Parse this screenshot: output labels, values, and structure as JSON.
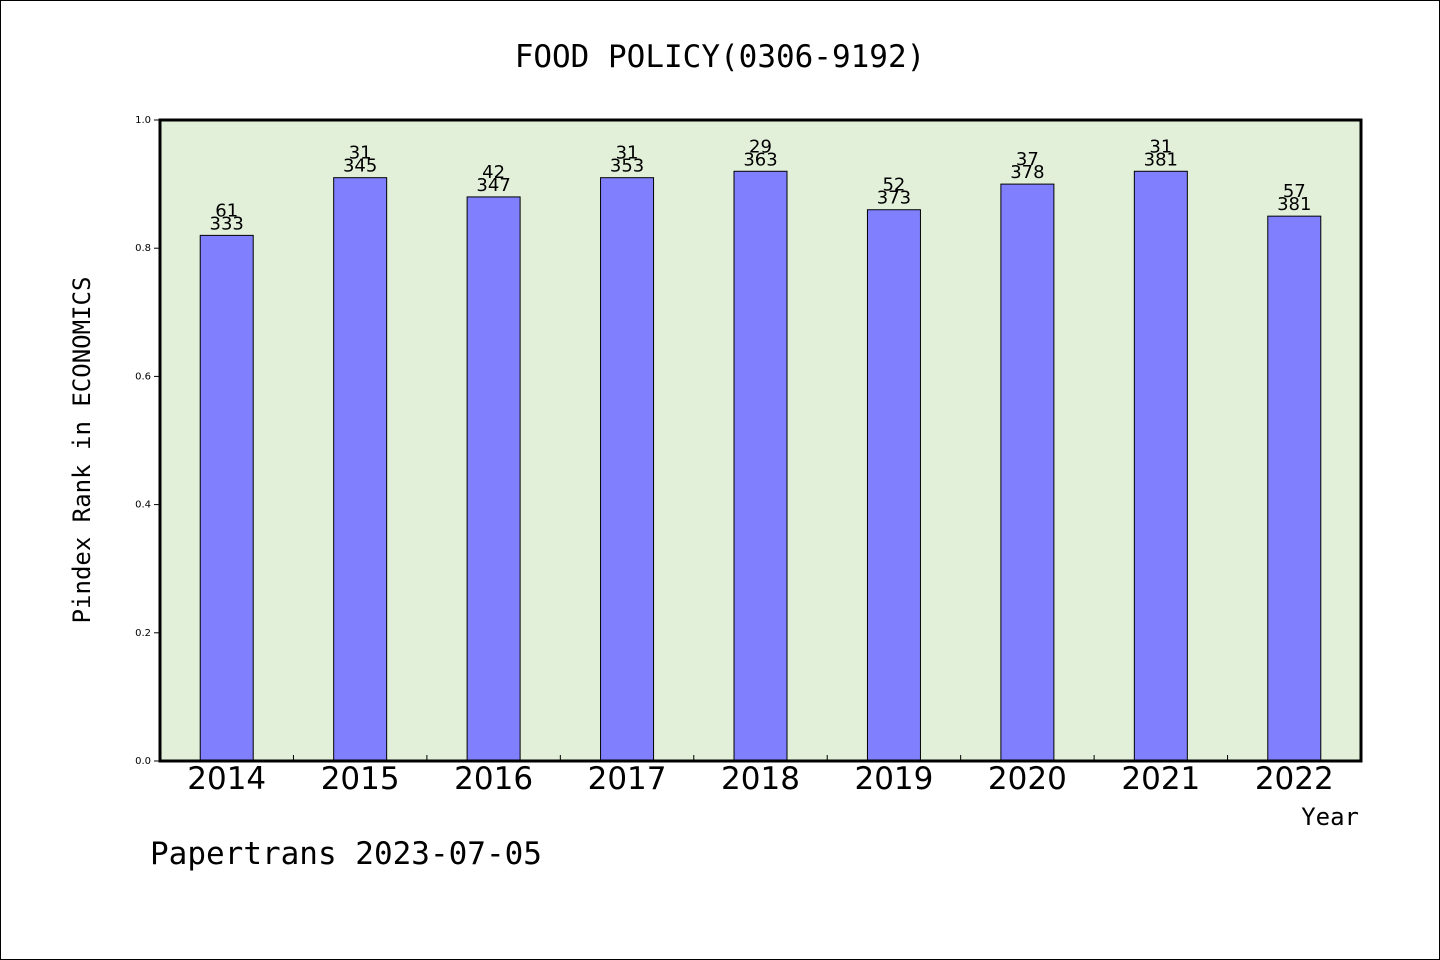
{
  "chart_data": {
    "type": "bar",
    "title": "FOOD POLICY(0306-9192)",
    "xlabel": "Year",
    "ylabel": "Pindex Rank in ECONOMICS",
    "ylim": [
      0,
      1.0
    ],
    "yticks": [
      "0.0",
      "0.2",
      "0.4",
      "0.6",
      "0.8",
      "1.0"
    ],
    "ytick_values": [
      0,
      0.2,
      0.4,
      0.6,
      0.8,
      1.0
    ],
    "categories": [
      "2014",
      "2015",
      "2016",
      "2017",
      "2018",
      "2019",
      "2020",
      "2021",
      "2022"
    ],
    "values": [
      0.82,
      0.91,
      0.88,
      0.91,
      0.92,
      0.86,
      0.9,
      0.92,
      0.85
    ],
    "label_top": [
      "61",
      "31",
      "42",
      "31",
      "29",
      "52",
      "37",
      "31",
      "57"
    ],
    "label_bottom": [
      "333",
      "345",
      "347",
      "353",
      "363",
      "373",
      "378",
      "381",
      "381"
    ],
    "colors": {
      "plot_bg": "#e2f0d9",
      "bar": "#8080ff",
      "axis": "#000000"
    },
    "grid": false,
    "legend": "none"
  },
  "footer": {
    "credit": "Papertrans 2023-07-05"
  }
}
